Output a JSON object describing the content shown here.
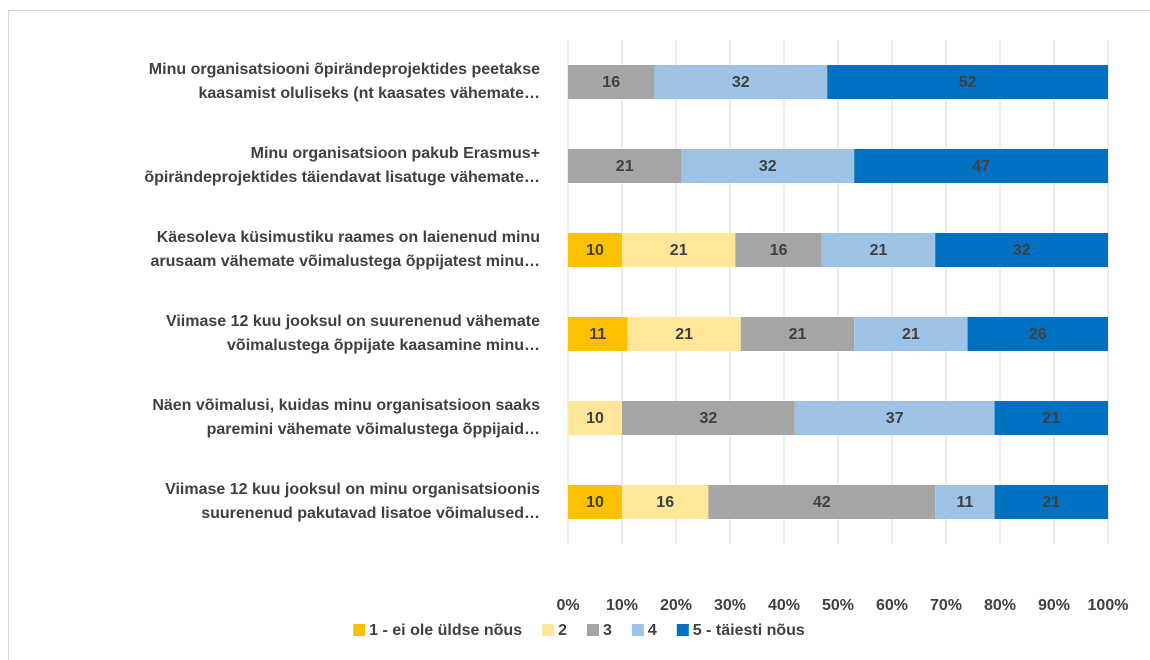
{
  "chart_data": {
    "type": "bar",
    "orientation": "horizontal",
    "stacked": true,
    "categories": [
      "Minu organisatsiooni õpirändeprojektides peetakse\nkaasamist oluliseks (nt kaasates vähemate…",
      "Minu organisatsioon pakub Erasmus+\nõpirändeprojektides täiendavat lisatuge vähemate…",
      "Käesoleva küsimustiku raames on laienenud minu\narusaam vähemate võimalustega õppijatest minu…",
      "Viimase 12 kuu jooksul on suurenenud vähemate\nvõimalustega õppijate kaasamine minu…",
      "Näen võimalusi, kuidas minu organisatsioon saaks\nparemini vähemate võimalustega õppijaid…",
      "Viimase 12 kuu jooksul on minu organisatsioonis\nsuurenenud pakutavad lisatoe võimalused…"
    ],
    "series": [
      {
        "name": "1 - ei ole üldse nõus",
        "color": "#ffc000",
        "values": [
          0,
          0,
          10,
          11,
          0,
          10
        ]
      },
      {
        "name": "2",
        "color": "#ffe699",
        "values": [
          0,
          0,
          21,
          21,
          10,
          16
        ]
      },
      {
        "name": "3",
        "color": "#a5a5a5",
        "values": [
          16,
          21,
          16,
          21,
          32,
          42
        ]
      },
      {
        "name": "4",
        "color": "#9dc3e6",
        "values": [
          32,
          32,
          21,
          21,
          37,
          11
        ]
      },
      {
        "name": "5 - täiesti nõus",
        "color": "#0070c0",
        "values": [
          52,
          47,
          32,
          26,
          21,
          21
        ]
      }
    ],
    "xlim": [
      0,
      100
    ],
    "xticks": [
      {
        "value": 0,
        "label": "0%"
      },
      {
        "value": 10,
        "label": "10%"
      },
      {
        "value": 20,
        "label": "20%"
      },
      {
        "value": 30,
        "label": "30%"
      },
      {
        "value": 40,
        "label": "40%"
      },
      {
        "value": 50,
        "label": "50%"
      },
      {
        "value": 60,
        "label": "60%"
      },
      {
        "value": 70,
        "label": "70%"
      },
      {
        "value": 80,
        "label": "80%"
      },
      {
        "value": 90,
        "label": "90%"
      },
      {
        "value": 100,
        "label": "100%"
      }
    ],
    "grid": true,
    "data_labels": true,
    "legend": "bottom"
  }
}
